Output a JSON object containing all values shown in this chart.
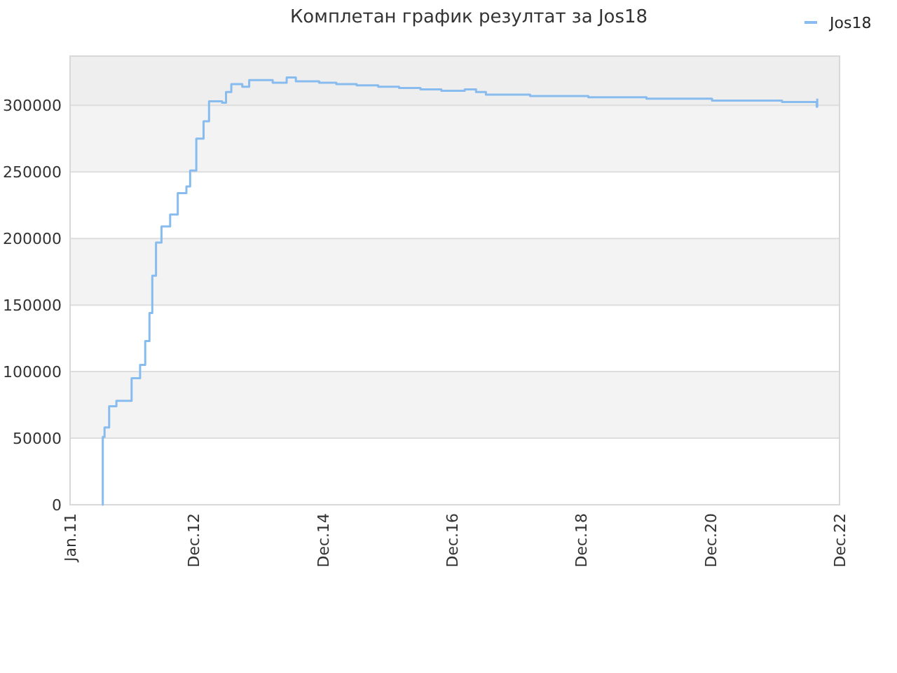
{
  "chart_data": {
    "type": "step",
    "title": "Комплетан график резултат за Jos18",
    "x": [
      "2011-07-01",
      "2011-07-05",
      "2011-07-15",
      "2011-08-10",
      "2011-09-20",
      "2011-12-15",
      "2012-02-01",
      "2012-03-01",
      "2012-03-25",
      "2012-04-10",
      "2012-05-01",
      "2012-06-01",
      "2012-07-20",
      "2012-09-01",
      "2012-10-20",
      "2012-11-10",
      "2012-12-15",
      "2013-01-25",
      "2013-02-25",
      "2013-05-10",
      "2013-06-01",
      "2013-07-01",
      "2013-09-01",
      "2013-10-10",
      "2014-02-20",
      "2014-05-10",
      "2014-07-01",
      "2014-11-10",
      "2015-02-15",
      "2015-06-10",
      "2015-10-10",
      "2016-02-05",
      "2016-06-05",
      "2016-10-01",
      "2017-02-10",
      "2017-04-15",
      "2017-06-10",
      "2018-02-15",
      "2019-01-10",
      "2019-12-05",
      "2020-12-10",
      "2022-01-10",
      "2022-07-25",
      "2022-07-28"
    ],
    "series": [
      {
        "name": "Jos18",
        "color": "#88bbee",
        "values": [
          0,
          51000,
          58000,
          74000,
          78000,
          95000,
          105000,
          123000,
          144000,
          172000,
          197000,
          209000,
          218000,
          234000,
          239000,
          251000,
          275000,
          288000,
          303000,
          302000,
          310000,
          316000,
          314000,
          319000,
          317000,
          321000,
          318000,
          317000,
          316000,
          315000,
          314000,
          313000,
          312000,
          311000,
          312000,
          310000,
          308000,
          307000,
          306000,
          305000,
          303500,
          302500,
          299000,
          305000
        ]
      }
    ],
    "xlim": [
      "2011-01",
      "2022-12"
    ],
    "xticks": [
      {
        "value": "2011-01",
        "label": "Jan.11"
      },
      {
        "value": "2012-12",
        "label": "Dec.12"
      },
      {
        "value": "2014-12",
        "label": "Dec.14"
      },
      {
        "value": "2016-12",
        "label": "Dec.16"
      },
      {
        "value": "2018-12",
        "label": "Dec.18"
      },
      {
        "value": "2020-12",
        "label": "Dec.20"
      },
      {
        "value": "2022-12",
        "label": "Dec.22"
      }
    ],
    "ylim": [
      0,
      337000
    ],
    "yticks": [
      0,
      50000,
      100000,
      150000,
      200000,
      250000,
      300000
    ],
    "bands": [
      {
        "axis": "y",
        "from": 300000,
        "to": 337000,
        "color": "#eeeeee"
      }
    ],
    "grid": "y",
    "legend": "top right"
  }
}
